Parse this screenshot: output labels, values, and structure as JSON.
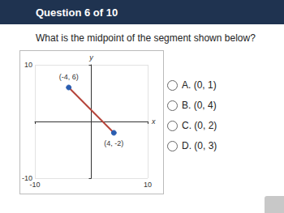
{
  "header": {
    "title": "Question 6 of 10"
  },
  "question": "What is the midpoint of the segment shown below?",
  "chart_data": {
    "type": "line",
    "x_label": "x",
    "y_label": "y",
    "points": [
      {
        "x": -4,
        "y": 6,
        "label": "(-4, 6)"
      },
      {
        "x": 4,
        "y": -2,
        "label": "(4, -2)"
      }
    ],
    "color": "#b5443a",
    "colors": [
      "#2a5db0",
      "#2a5db0"
    ],
    "marker": "circle",
    "xlim": [
      -10,
      10
    ],
    "ylim": [
      -10,
      10
    ],
    "xticks": [
      -10,
      10
    ],
    "yticks": [
      -10,
      10
    ],
    "grid": true
  },
  "options": [
    "A. (0, 1)",
    "B. (0, 4)",
    "C. (0, 2)",
    "D. (0, 3)"
  ]
}
